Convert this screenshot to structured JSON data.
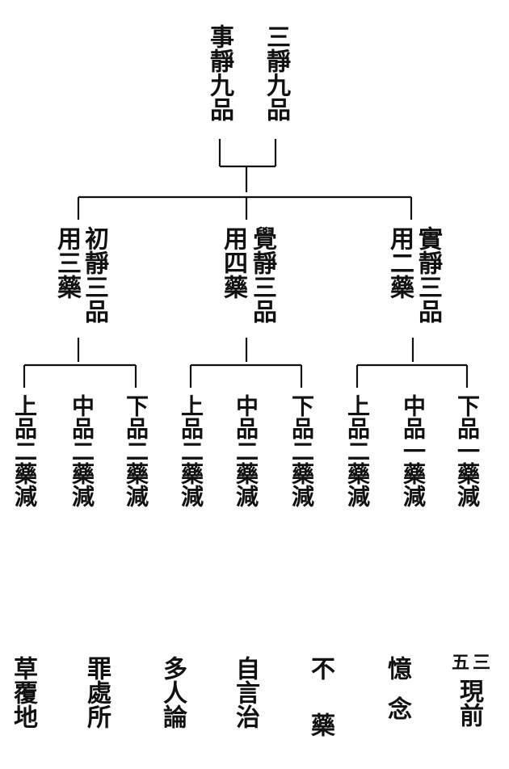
{
  "root": {
    "right_text": "三靜九品",
    "left_text": "事靜九品"
  },
  "branches": [
    {
      "main": "初靜三品",
      "side": "用三藥",
      "leaves": [
        "下品二藥減",
        "中品二藥減",
        "上品二藥減"
      ]
    },
    {
      "main": "覺靜三品",
      "side": "用四藥",
      "leaves": [
        "下品二藥減",
        "中品二藥減",
        "上品二藥減"
      ]
    },
    {
      "main": "實靜三品",
      "side": "用二藥",
      "leaves": [
        "下品一藥減",
        "中品一藥減",
        "上品二藥減"
      ]
    }
  ],
  "bottom_row": [
    {
      "col1": "三",
      "col2": "五",
      "col1_cont": "現前"
    },
    {
      "text": "憶念"
    },
    {
      "text": "不藥"
    },
    {
      "text": "自言治"
    },
    {
      "text": "多人論"
    },
    {
      "text": "罪處所"
    },
    {
      "text": "草覆地"
    }
  ],
  "colors": {
    "ink": "#111111",
    "paper": "#ffffff"
  }
}
